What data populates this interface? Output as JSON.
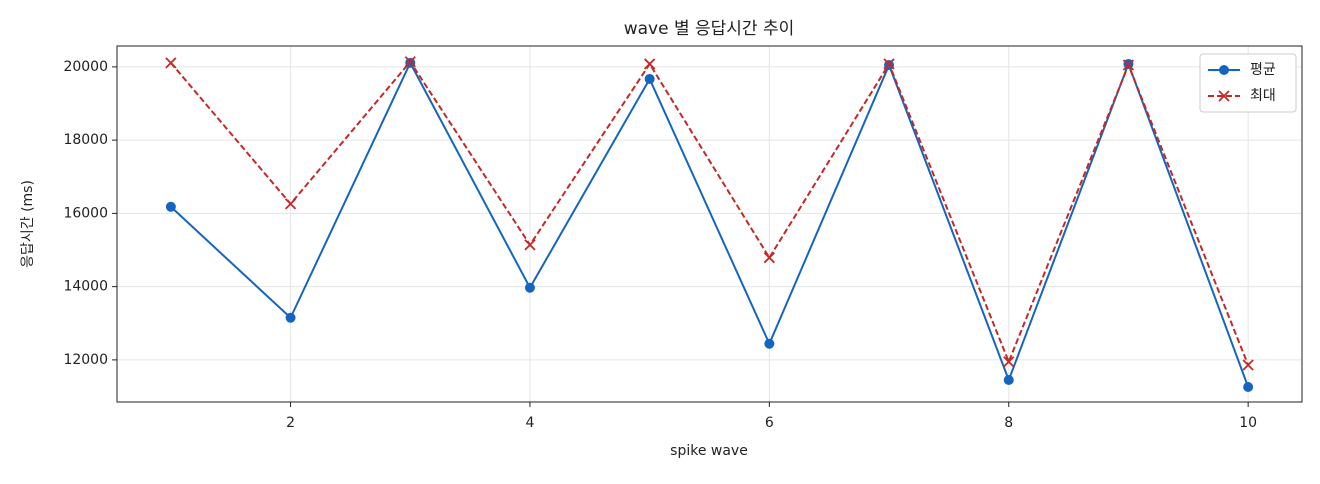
{
  "chart_data": {
    "type": "line",
    "title": "wave 별 응답시간 추이",
    "x_label": "spike wave",
    "y_label": "응답시간 (ms)",
    "x": [
      1,
      2,
      3,
      4,
      5,
      6,
      7,
      8,
      9,
      10
    ],
    "series": [
      {
        "name": "평균",
        "color": "#1565c0",
        "marker": "circle",
        "dash": "solid",
        "values": [
          16180,
          13150,
          20110,
          13970,
          19670,
          12440,
          20050,
          11450,
          20080,
          11260
        ]
      },
      {
        "name": "최대",
        "color": "#c62828",
        "marker": "x",
        "dash": "dashed",
        "values": [
          20110,
          16260,
          20140,
          15140,
          20080,
          14790,
          20080,
          11950,
          20050,
          11860
        ]
      }
    ],
    "xlim": [
      0.55,
      10.45
    ],
    "xticks": [
      2,
      4,
      6,
      8,
      10
    ],
    "ylim": [
      10850,
      20570
    ],
    "yticks": [
      12000,
      14000,
      16000,
      18000,
      20000
    ],
    "grid": true,
    "legend": "upper right"
  }
}
